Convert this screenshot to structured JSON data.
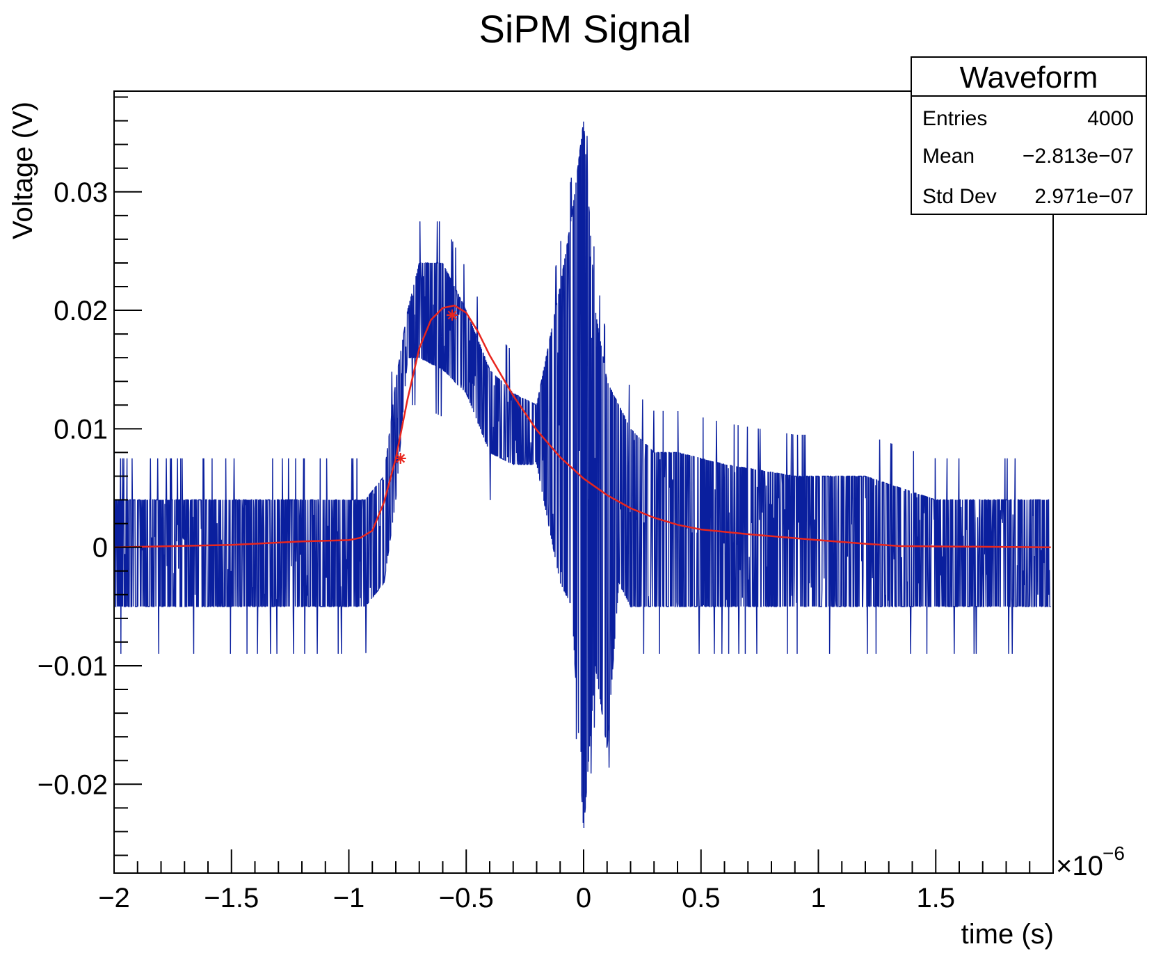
{
  "chart_data": {
    "type": "line",
    "title": "SiPM Signal",
    "xlabel": "time (s)",
    "ylabel": "Voltage (V)",
    "x_exponent_label": "×10",
    "x_exponent_power": "−6",
    "xlim": [
      -2.0,
      2.0
    ],
    "ylim": [
      -0.0275,
      0.0385
    ],
    "x_ticks": [
      -2,
      -1.5,
      -1,
      -0.5,
      0,
      0.5,
      1,
      1.5
    ],
    "x_tick_labels": [
      "−2",
      "−1.5",
      "−1",
      "−0.5",
      "0",
      "0.5",
      "1",
      "1.5"
    ],
    "y_ticks": [
      -0.02,
      -0.01,
      0,
      0.01,
      0.02,
      0.03
    ],
    "y_tick_labels": [
      "−0.02",
      "−0.01",
      "0",
      "0.01",
      "0.02",
      "0.03"
    ],
    "grid": false,
    "legend": "none",
    "stats_box": {
      "title": "Waveform",
      "rows": [
        {
          "label": "Entries",
          "value": "4000"
        },
        {
          "label": "Mean",
          "value": "−2.813e−07"
        },
        {
          "label": "Std Dev",
          "value": "2.971e−07"
        }
      ]
    },
    "series": [
      {
        "color": "#0a1f9e",
        "style": "noisy-waveform",
        "envelope": {
          "x": [
            -2.0,
            -0.93,
            -0.85,
            -0.8,
            -0.75,
            -0.7,
            -0.6,
            -0.5,
            -0.4,
            -0.3,
            -0.2,
            -0.1,
            -0.05,
            0.0,
            0.05,
            0.1,
            0.15,
            0.2,
            0.3,
            0.4,
            0.6,
            0.9,
            1.2,
            1.5,
            1.99
          ],
          "low": [
            -0.005,
            -0.005,
            -0.003,
            0.004,
            0.016,
            0.016,
            0.015,
            0.013,
            0.008,
            0.007,
            0.007,
            -0.003,
            -0.005,
            -0.024,
            -0.01,
            -0.017,
            -0.003,
            -0.005,
            -0.005,
            -0.005,
            -0.005,
            -0.005,
            -0.005,
            -0.005,
            -0.005
          ],
          "high": [
            0.004,
            0.004,
            0.006,
            0.014,
            0.02,
            0.024,
            0.024,
            0.02,
            0.015,
            0.013,
            0.012,
            0.022,
            0.028,
            0.036,
            0.02,
            0.014,
            0.012,
            0.01,
            0.008,
            0.008,
            0.007,
            0.006,
            0.006,
            0.004,
            0.004
          ]
        }
      },
      {
        "color": "#e8261e",
        "style": "fit-line",
        "x": [
          -2.0,
          -1.5,
          -1.2,
          -1.0,
          -0.95,
          -0.9,
          -0.85,
          -0.8,
          -0.75,
          -0.7,
          -0.65,
          -0.6,
          -0.55,
          -0.5,
          -0.45,
          -0.4,
          -0.3,
          -0.2,
          -0.1,
          0.0,
          0.1,
          0.2,
          0.3,
          0.4,
          0.5,
          0.7,
          1.0,
          1.2,
          1.35,
          1.99
        ],
        "y": [
          0.0,
          0.0002,
          0.0005,
          0.0006,
          0.0008,
          0.0014,
          0.0038,
          0.0075,
          0.0125,
          0.0168,
          0.0192,
          0.0202,
          0.0204,
          0.0198,
          0.0182,
          0.0162,
          0.0128,
          0.0099,
          0.0076,
          0.0058,
          0.0044,
          0.0033,
          0.0025,
          0.0019,
          0.0015,
          0.0011,
          0.0006,
          0.0003,
          0.0001,
          0.0
        ]
      }
    ],
    "markers": [
      {
        "x": -0.78,
        "y": 0.0075,
        "symbol": "star"
      },
      {
        "x": -0.56,
        "y": 0.0196,
        "symbol": "star"
      }
    ]
  }
}
